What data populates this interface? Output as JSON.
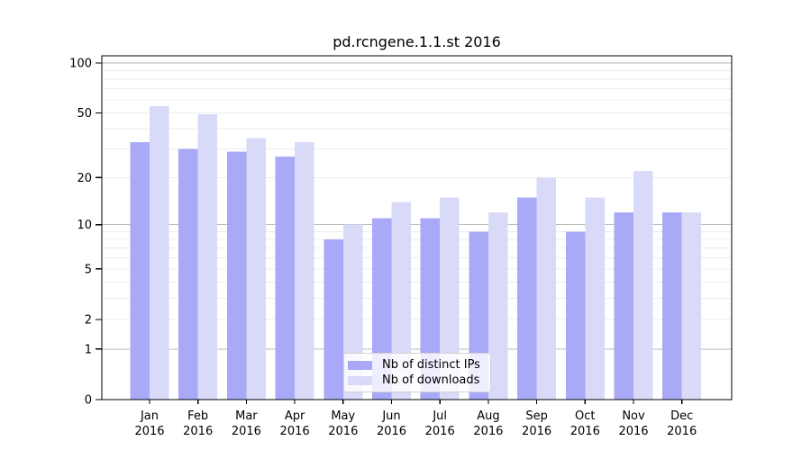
{
  "title": "pd.rcngene.1.1.st 2016",
  "colors": {
    "series_ips": "#a9a9f7",
    "series_downloads": "#d9d9f8",
    "grid_major": "#b8b8b8",
    "grid_minor": "#ececec",
    "spine": "#000000",
    "legend_border": "#d4d4d4",
    "background": "#ffffff"
  },
  "legend": {
    "items": [
      {
        "label": "Nb of distinct IPs"
      },
      {
        "label": "Nb of downloads"
      }
    ]
  },
  "chart_data": {
    "type": "bar",
    "title": "pd.rcngene.1.1.st 2016",
    "yscale": "log1p",
    "ylim": [
      0,
      100
    ],
    "xlabel": "",
    "ylabel": "",
    "grid": true,
    "legend_position": "lower center inside",
    "categories": [
      "Jan",
      "Feb",
      "Mar",
      "Apr",
      "May",
      "Jun",
      "Jul",
      "Aug",
      "Sep",
      "Oct",
      "Nov",
      "Dec"
    ],
    "category_year": "2016",
    "ytick_values": [
      0,
      1,
      2,
      5,
      10,
      20,
      50,
      100
    ],
    "ytick_labels": [
      "0",
      "1",
      "2",
      "5",
      "10",
      "20",
      "50",
      "100"
    ],
    "grid_major_values": [
      1,
      10,
      100
    ],
    "grid_minor_values": [
      2,
      3,
      4,
      5,
      6,
      7,
      8,
      9,
      20,
      30,
      40,
      50,
      60,
      70,
      80,
      90
    ],
    "series": [
      {
        "name": "Nb of distinct IPs",
        "color": "#a9a9f7",
        "values": [
          33,
          30,
          29,
          27,
          8,
          11,
          11,
          9,
          15,
          9,
          12,
          12
        ]
      },
      {
        "name": "Nb of downloads",
        "color": "#d9d9f8",
        "values": [
          55,
          49,
          35,
          33,
          10,
          14,
          15,
          12,
          20,
          15,
          22,
          12
        ]
      }
    ]
  }
}
